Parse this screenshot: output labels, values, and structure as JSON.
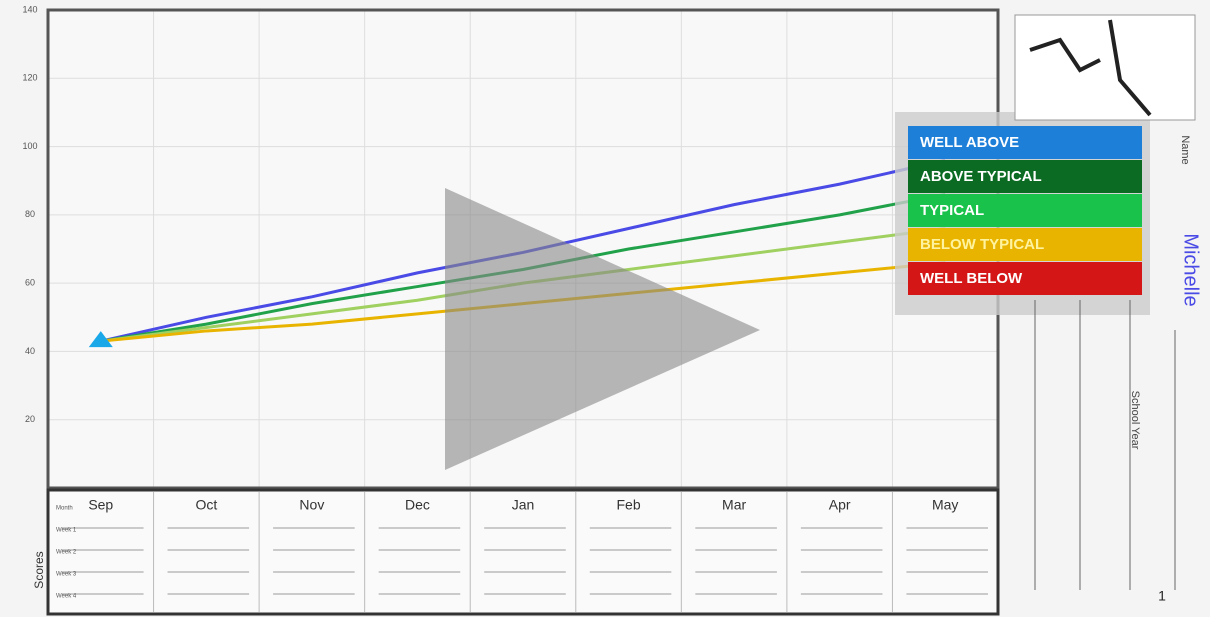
{
  "chart_data": {
    "type": "line",
    "categories": [
      "Sep",
      "Oct",
      "Nov",
      "Dec",
      "Jan",
      "Feb",
      "Mar",
      "Apr",
      "May"
    ],
    "series": [
      {
        "name": "WELL ABOVE",
        "color": "#1e7fd8",
        "line_color": "#4a4ae6",
        "values": [
          43,
          50,
          56,
          63,
          69,
          76,
          83,
          89,
          96
        ]
      },
      {
        "name": "ABOVE TYPICAL",
        "color": "#0b6b22",
        "line_color": "#21a24a",
        "values": [
          43,
          48,
          54,
          59,
          64,
          70,
          75,
          80,
          86
        ]
      },
      {
        "name": "TYPICAL",
        "color": "#19c24a",
        "line_color": "#9fd060",
        "values": [
          43,
          47,
          51,
          55,
          60,
          64,
          68,
          72,
          76
        ]
      },
      {
        "name": "BELOW TYPICAL",
        "color": "#e8b400",
        "line_color": "#e8b400",
        "values": [
          43,
          46,
          48,
          51,
          54,
          57,
          60,
          63,
          66
        ]
      },
      {
        "name": "WELL BELOW",
        "color": "#d41616",
        "line_color": "#d41616",
        "values": [
          null,
          null,
          null,
          null,
          null,
          null,
          null,
          null,
          null
        ]
      }
    ],
    "ylim": [
      0,
      140
    ],
    "yticks": [
      20,
      40,
      60,
      80,
      100,
      120,
      140
    ],
    "grid": true,
    "start_marker_color": "#1aa8e8"
  },
  "form": {
    "scores_label": "Scores",
    "row_labels": [
      "Month",
      "Week 1",
      "Week 2",
      "Week 3",
      "Week 4"
    ],
    "name_label": "Name",
    "name": "Michelle",
    "school_year_label": "School Year",
    "page": "1"
  }
}
